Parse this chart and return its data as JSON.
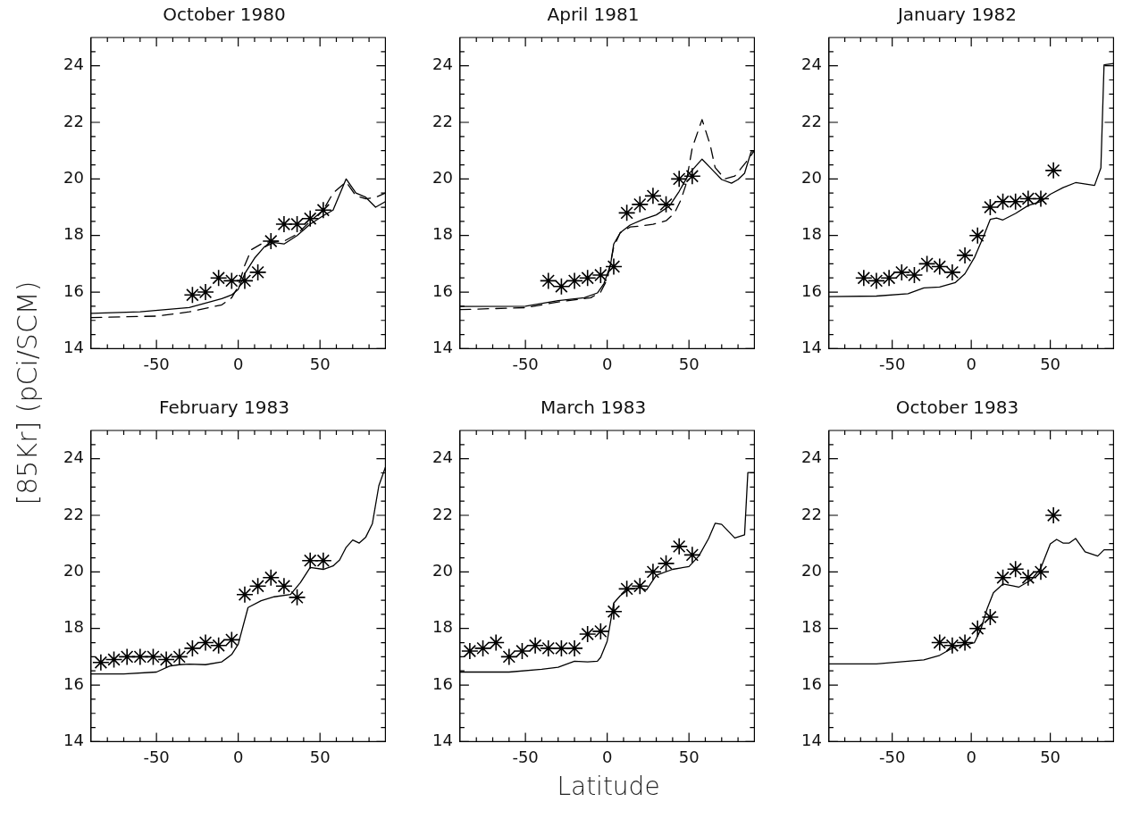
{
  "chart_data": [
    {
      "type": "line",
      "title": "October 1980",
      "xlim": [
        -90,
        90
      ],
      "ylim": [
        14,
        25
      ],
      "xticks": [
        {
          "value": -80,
          "label": null
        },
        {
          "value": -70,
          "label": null
        },
        {
          "value": -60,
          "label": null
        },
        -50,
        {
          "value": -40,
          "label": null
        },
        {
          "value": -30,
          "label": null
        },
        {
          "value": -20,
          "label": null
        },
        {
          "value": -10,
          "label": null
        },
        0,
        {
          "value": 10,
          "label": null
        },
        {
          "value": 20,
          "label": null
        },
        {
          "value": 30,
          "label": null
        },
        {
          "value": 40,
          "label": null
        },
        50,
        {
          "value": 60,
          "label": null
        },
        {
          "value": 70,
          "label": null
        },
        {
          "value": 80,
          "label": null
        }
      ],
      "yticks": [
        14,
        {
          "value": 14.5,
          "label": null
        },
        {
          "value": 15,
          "label": null
        },
        {
          "value": 15.5,
          "label": null
        },
        16,
        {
          "value": 16.5,
          "label": null
        },
        {
          "value": 17,
          "label": null
        },
        {
          "value": 17.5,
          "label": null
        },
        18,
        {
          "value": 18.5,
          "label": null
        },
        {
          "value": 19,
          "label": null
        },
        {
          "value": 19.5,
          "label": null
        },
        20,
        {
          "value": 20.5,
          "label": null
        },
        {
          "value": 21,
          "label": null
        },
        {
          "value": 21.5,
          "label": null
        },
        22,
        {
          "value": 22.5,
          "label": null
        },
        {
          "value": 23,
          "label": null
        },
        {
          "value": 23.5,
          "label": null
        },
        24,
        {
          "value": 24.5,
          "label": null
        }
      ],
      "series": [
        {
          "type": "line",
          "color": "#000000",
          "x": [
            -90,
            -60,
            -30,
            -10,
            -4,
            0,
            4,
            10,
            16,
            22,
            28,
            36,
            44,
            52,
            58,
            66,
            72,
            78,
            84,
            90
          ],
          "values": [
            15.25,
            15.3,
            15.45,
            15.77,
            15.9,
            16.1,
            16.65,
            17.2,
            17.6,
            17.75,
            17.7,
            18.0,
            18.4,
            18.7,
            18.9,
            20.0,
            19.5,
            19.35,
            19.0,
            19.2
          ]
        },
        {
          "type": "line",
          "line_style": "dashed",
          "color": "#000000",
          "x": [
            -90,
            -50,
            -30,
            -10,
            -4,
            0,
            4,
            8,
            14,
            20,
            28,
            36,
            44,
            52,
            58,
            66,
            72,
            78,
            84,
            90
          ],
          "values": [
            15.1,
            15.15,
            15.3,
            15.55,
            15.8,
            16.2,
            16.95,
            17.5,
            17.7,
            17.8,
            17.8,
            18.05,
            18.5,
            18.9,
            19.5,
            19.9,
            19.4,
            19.3,
            19.35,
            19.5
          ]
        },
        {
          "type": "scatter",
          "marker": "cross",
          "color": "#000000",
          "x": [
            -28,
            -20,
            -12,
            -4,
            4,
            12,
            20,
            28,
            36,
            44,
            52
          ],
          "values": [
            15.9,
            16.0,
            16.5,
            16.4,
            16.4,
            16.7,
            17.8,
            18.4,
            18.4,
            18.6,
            18.9
          ]
        }
      ]
    },
    {
      "type": "line",
      "title": "April 1981",
      "xlim": [
        -90,
        90
      ],
      "ylim": [
        14,
        25
      ],
      "xticks": [
        {
          "value": -80,
          "label": null
        },
        {
          "value": -70,
          "label": null
        },
        {
          "value": -60,
          "label": null
        },
        -50,
        {
          "value": -40,
          "label": null
        },
        {
          "value": -30,
          "label": null
        },
        {
          "value": -20,
          "label": null
        },
        {
          "value": -10,
          "label": null
        },
        0,
        {
          "value": 10,
          "label": null
        },
        {
          "value": 20,
          "label": null
        },
        {
          "value": 30,
          "label": null
        },
        {
          "value": 40,
          "label": null
        },
        50,
        {
          "value": 60,
          "label": null
        },
        {
          "value": 70,
          "label": null
        },
        {
          "value": 80,
          "label": null
        }
      ],
      "yticks": [
        14,
        {
          "value": 14.5,
          "label": null
        },
        {
          "value": 15,
          "label": null
        },
        {
          "value": 15.5,
          "label": null
        },
        16,
        {
          "value": 16.5,
          "label": null
        },
        {
          "value": 17,
          "label": null
        },
        {
          "value": 17.5,
          "label": null
        },
        18,
        {
          "value": 18.5,
          "label": null
        },
        {
          "value": 19,
          "label": null
        },
        {
          "value": 19.5,
          "label": null
        },
        20,
        {
          "value": 20.5,
          "label": null
        },
        {
          "value": 21,
          "label": null
        },
        {
          "value": 21.5,
          "label": null
        },
        22,
        {
          "value": 22.5,
          "label": null
        },
        {
          "value": 23,
          "label": null
        },
        {
          "value": 23.5,
          "label": null
        },
        24,
        {
          "value": 24.5,
          "label": null
        }
      ],
      "series": [
        {
          "type": "line",
          "color": "#000000",
          "x": [
            -90,
            -50,
            -30,
            -14,
            -6,
            -2,
            2,
            4,
            8,
            14,
            22,
            30,
            38,
            44,
            50,
            58,
            64,
            70,
            76,
            80,
            84,
            88,
            90
          ],
          "values": [
            15.49,
            15.5,
            15.7,
            15.8,
            15.97,
            16.3,
            16.95,
            17.7,
            18.1,
            18.37,
            18.57,
            18.73,
            19.04,
            19.56,
            20.18,
            20.7,
            20.34,
            19.98,
            19.85,
            19.98,
            20.2,
            20.96,
            20.96
          ]
        },
        {
          "type": "line",
          "line_style": "dashed",
          "color": "#000000",
          "x": [
            -90,
            -50,
            -30,
            -10,
            -4,
            0,
            4,
            8,
            14,
            20,
            28,
            36,
            41,
            45,
            48,
            52,
            58,
            63,
            66,
            72,
            78,
            85,
            90
          ],
          "values": [
            15.38,
            15.45,
            15.65,
            15.8,
            16.0,
            16.45,
            17.6,
            18.1,
            18.3,
            18.33,
            18.4,
            18.52,
            18.78,
            19.25,
            19.77,
            21.1,
            22.1,
            21.2,
            20.4,
            20.0,
            20.1,
            20.6,
            21.0
          ]
        },
        {
          "type": "scatter",
          "marker": "cross",
          "color": "#000000",
          "x": [
            -36,
            -28,
            -20,
            -12,
            -4,
            4,
            12,
            20,
            28,
            36,
            44,
            52
          ],
          "values": [
            16.4,
            16.2,
            16.4,
            16.5,
            16.6,
            16.9,
            18.8,
            19.1,
            19.4,
            19.1,
            20.0,
            20.1
          ]
        }
      ]
    },
    {
      "type": "line",
      "title": "January 1982",
      "xlim": [
        -90,
        90
      ],
      "ylim": [
        14,
        25
      ],
      "xticks": [
        {
          "value": -80,
          "label": null
        },
        {
          "value": -70,
          "label": null
        },
        {
          "value": -60,
          "label": null
        },
        -50,
        {
          "value": -40,
          "label": null
        },
        {
          "value": -30,
          "label": null
        },
        {
          "value": -20,
          "label": null
        },
        {
          "value": -10,
          "label": null
        },
        0,
        {
          "value": 10,
          "label": null
        },
        {
          "value": 20,
          "label": null
        },
        {
          "value": 30,
          "label": null
        },
        {
          "value": 40,
          "label": null
        },
        50,
        {
          "value": 60,
          "label": null
        },
        {
          "value": 70,
          "label": null
        },
        {
          "value": 80,
          "label": null
        }
      ],
      "yticks": [
        14,
        {
          "value": 14.5,
          "label": null
        },
        {
          "value": 15,
          "label": null
        },
        {
          "value": 15.5,
          "label": null
        },
        16,
        {
          "value": 16.5,
          "label": null
        },
        {
          "value": 17,
          "label": null
        },
        {
          "value": 17.5,
          "label": null
        },
        18,
        {
          "value": 18.5,
          "label": null
        },
        {
          "value": 19,
          "label": null
        },
        {
          "value": 19.5,
          "label": null
        },
        20,
        {
          "value": 20.5,
          "label": null
        },
        {
          "value": 21,
          "label": null
        },
        {
          "value": 21.5,
          "label": null
        },
        22,
        {
          "value": 22.5,
          "label": null
        },
        {
          "value": 23,
          "label": null
        },
        {
          "value": 23.5,
          "label": null
        },
        24,
        {
          "value": 24.5,
          "label": null
        }
      ],
      "series": [
        {
          "type": "line",
          "color": "#000000",
          "x": [
            -90,
            -60,
            -40,
            -30,
            -20,
            -10,
            -4,
            2,
            8,
            12,
            16,
            20,
            28,
            36,
            44,
            50,
            58,
            66,
            78,
            82,
            84,
            90
          ],
          "values": [
            15.84,
            15.86,
            15.94,
            16.15,
            16.18,
            16.34,
            16.65,
            17.22,
            18.0,
            18.57,
            18.62,
            18.55,
            18.78,
            19.06,
            19.2,
            19.46,
            19.69,
            19.87,
            19.77,
            20.39,
            24.03,
            24.08
          ]
        },
        {
          "type": "scatter",
          "marker": "cross",
          "color": "#000000",
          "x": [
            -68,
            -60,
            -52,
            -44,
            -36,
            -28,
            -20,
            -12,
            -4,
            4,
            12,
            20,
            28,
            36,
            44,
            52
          ],
          "values": [
            16.5,
            16.4,
            16.5,
            16.7,
            16.6,
            17.0,
            16.9,
            16.7,
            17.3,
            18.0,
            19.0,
            19.2,
            19.2,
            19.3,
            19.3,
            20.3
          ]
        }
      ]
    },
    {
      "type": "line",
      "title": "February 1983",
      "ylabel": "[85Kr] (pCi/SCM)",
      "xlim": [
        -90,
        90
      ],
      "ylim": [
        14,
        25
      ],
      "xticks": [
        {
          "value": -80,
          "label": null
        },
        {
          "value": -70,
          "label": null
        },
        {
          "value": -60,
          "label": null
        },
        -50,
        {
          "value": -40,
          "label": null
        },
        {
          "value": -30,
          "label": null
        },
        {
          "value": -20,
          "label": null
        },
        {
          "value": -10,
          "label": null
        },
        0,
        {
          "value": 10,
          "label": null
        },
        {
          "value": 20,
          "label": null
        },
        {
          "value": 30,
          "label": null
        },
        {
          "value": 40,
          "label": null
        },
        50,
        {
          "value": 60,
          "label": null
        },
        {
          "value": 70,
          "label": null
        },
        {
          "value": 80,
          "label": null
        }
      ],
      "yticks": [
        14,
        {
          "value": 14.5,
          "label": null
        },
        {
          "value": 15,
          "label": null
        },
        {
          "value": 15.5,
          "label": null
        },
        16,
        {
          "value": 16.5,
          "label": null
        },
        {
          "value": 17,
          "label": null
        },
        {
          "value": 17.5,
          "label": null
        },
        18,
        {
          "value": 18.5,
          "label": null
        },
        {
          "value": 19,
          "label": null
        },
        {
          "value": 19.5,
          "label": null
        },
        20,
        {
          "value": 20.5,
          "label": null
        },
        {
          "value": 21,
          "label": null
        },
        {
          "value": 21.5,
          "label": null
        },
        22,
        {
          "value": 22.5,
          "label": null
        },
        {
          "value": 23,
          "label": null
        },
        {
          "value": 23.5,
          "label": null
        },
        24,
        {
          "value": 24.5,
          "label": null
        }
      ],
      "series": [
        {
          "type": "line",
          "color": "#000000",
          "x": [
            -90,
            -70,
            -50,
            -42,
            -36,
            -30,
            -20,
            -10,
            -4,
            0,
            6,
            14,
            22,
            32,
            38,
            44,
            52,
            58,
            62,
            66,
            70,
            74,
            78,
            82,
            86,
            90
          ],
          "values": [
            16.39,
            16.39,
            16.46,
            16.67,
            16.72,
            16.74,
            16.72,
            16.82,
            17.08,
            17.44,
            18.74,
            18.98,
            19.12,
            19.2,
            19.62,
            20.16,
            20.09,
            20.21,
            20.42,
            20.87,
            21.13,
            21.02,
            21.23,
            21.7,
            23.05,
            23.7
          ]
        },
        {
          "type": "scatter",
          "marker": "cross",
          "color": "#000000",
          "x": [
            -84,
            -76,
            -68,
            -60,
            -52,
            -44,
            -36,
            -28,
            -20,
            -12,
            -4,
            4,
            12,
            20,
            28,
            36,
            44,
            52
          ],
          "values": [
            16.8,
            16.9,
            17.0,
            17.0,
            17.0,
            16.9,
            17.0,
            17.3,
            17.5,
            17.4,
            17.6,
            19.2,
            19.5,
            19.8,
            19.5,
            19.1,
            20.4,
            20.4
          ]
        }
      ]
    },
    {
      "type": "line",
      "title": "March 1983",
      "xlabel": "Latitude",
      "xlim": [
        -90,
        90
      ],
      "ylim": [
        14,
        25
      ],
      "xticks": [
        {
          "value": -80,
          "label": null
        },
        {
          "value": -70,
          "label": null
        },
        {
          "value": -60,
          "label": null
        },
        -50,
        {
          "value": -40,
          "label": null
        },
        {
          "value": -30,
          "label": null
        },
        {
          "value": -20,
          "label": null
        },
        {
          "value": -10,
          "label": null
        },
        0,
        {
          "value": 10,
          "label": null
        },
        {
          "value": 20,
          "label": null
        },
        {
          "value": 30,
          "label": null
        },
        {
          "value": 40,
          "label": null
        },
        50,
        {
          "value": 60,
          "label": null
        },
        {
          "value": 70,
          "label": null
        },
        {
          "value": 80,
          "label": null
        }
      ],
      "yticks": [
        14,
        {
          "value": 14.5,
          "label": null
        },
        {
          "value": 15,
          "label": null
        },
        {
          "value": 15.5,
          "label": null
        },
        16,
        {
          "value": 16.5,
          "label": null
        },
        {
          "value": 17,
          "label": null
        },
        {
          "value": 17.5,
          "label": null
        },
        18,
        {
          "value": 18.5,
          "label": null
        },
        {
          "value": 19,
          "label": null
        },
        {
          "value": 19.5,
          "label": null
        },
        20,
        {
          "value": 20.5,
          "label": null
        },
        {
          "value": 21,
          "label": null
        },
        {
          "value": 21.5,
          "label": null
        },
        22,
        {
          "value": 22.5,
          "label": null
        },
        {
          "value": 23,
          "label": null
        },
        {
          "value": 23.5,
          "label": null
        },
        24,
        {
          "value": 24.5,
          "label": null
        }
      ],
      "series": [
        {
          "type": "line",
          "color": "#000000",
          "x": [
            -90,
            -60,
            -40,
            -30,
            -20,
            -12,
            -6,
            -4,
            0,
            4,
            8,
            14,
            20,
            24,
            30,
            40,
            50,
            56,
            62,
            66,
            70,
            78,
            84,
            86,
            90
          ],
          "values": [
            16.46,
            16.46,
            16.56,
            16.63,
            16.84,
            16.82,
            16.84,
            16.98,
            17.55,
            18.9,
            19.16,
            19.41,
            19.44,
            19.36,
            19.88,
            20.09,
            20.19,
            20.56,
            21.18,
            21.72,
            21.68,
            21.2,
            21.31,
            23.51,
            23.51
          ]
        },
        {
          "type": "scatter",
          "marker": "cross",
          "color": "#000000",
          "x": [
            -84,
            -76,
            -68,
            -60,
            -52,
            -44,
            -36,
            -28,
            -20,
            -12,
            -4,
            4,
            12,
            20,
            28,
            36,
            44,
            52
          ],
          "values": [
            17.2,
            17.3,
            17.5,
            17.0,
            17.2,
            17.4,
            17.3,
            17.3,
            17.3,
            17.8,
            17.9,
            18.6,
            19.4,
            19.5,
            20.0,
            20.3,
            20.9,
            20.6
          ]
        }
      ]
    },
    {
      "type": "line",
      "title": "October 1983",
      "xlim": [
        -90,
        90
      ],
      "ylim": [
        14,
        25
      ],
      "xticks": [
        {
          "value": -80,
          "label": null
        },
        {
          "value": -70,
          "label": null
        },
        {
          "value": -60,
          "label": null
        },
        -50,
        {
          "value": -40,
          "label": null
        },
        {
          "value": -30,
          "label": null
        },
        {
          "value": -20,
          "label": null
        },
        {
          "value": -10,
          "label": null
        },
        0,
        {
          "value": 10,
          "label": null
        },
        {
          "value": 20,
          "label": null
        },
        {
          "value": 30,
          "label": null
        },
        {
          "value": 40,
          "label": null
        },
        50,
        {
          "value": 60,
          "label": null
        },
        {
          "value": 70,
          "label": null
        },
        {
          "value": 80,
          "label": null
        }
      ],
      "yticks": [
        14,
        {
          "value": 14.5,
          "label": null
        },
        {
          "value": 15,
          "label": null
        },
        {
          "value": 15.5,
          "label": null
        },
        16,
        {
          "value": 16.5,
          "label": null
        },
        {
          "value": 17,
          "label": null
        },
        {
          "value": 17.5,
          "label": null
        },
        18,
        {
          "value": 18.5,
          "label": null
        },
        {
          "value": 19,
          "label": null
        },
        {
          "value": 19.5,
          "label": null
        },
        20,
        {
          "value": 20.5,
          "label": null
        },
        {
          "value": 21,
          "label": null
        },
        {
          "value": 21.5,
          "label": null
        },
        22,
        {
          "value": 22.5,
          "label": null
        },
        {
          "value": 23,
          "label": null
        },
        {
          "value": 23.5,
          "label": null
        },
        24,
        {
          "value": 24.5,
          "label": null
        }
      ],
      "series": [
        {
          "type": "line",
          "color": "#000000",
          "x": [
            -90,
            -60,
            -40,
            -30,
            -20,
            -14,
            -8,
            -2,
            2,
            6,
            10,
            14,
            20,
            26,
            30,
            38,
            44,
            50,
            54,
            58,
            62,
            66,
            72,
            80,
            84,
            90
          ],
          "values": [
            16.75,
            16.75,
            16.84,
            16.89,
            17.05,
            17.24,
            17.4,
            17.44,
            17.5,
            17.96,
            18.69,
            19.26,
            19.57,
            19.51,
            19.46,
            19.72,
            20.14,
            20.99,
            21.15,
            21.02,
            21.02,
            21.18,
            20.71,
            20.56,
            20.78,
            20.78
          ]
        },
        {
          "type": "scatter",
          "marker": "cross",
          "color": "#000000",
          "x": [
            -20,
            -12,
            -4,
            4,
            12,
            20,
            28,
            36,
            44,
            52
          ],
          "values": [
            17.5,
            17.4,
            17.5,
            18.0,
            18.4,
            19.8,
            20.1,
            19.8,
            20.0,
            22.0
          ]
        }
      ]
    }
  ]
}
